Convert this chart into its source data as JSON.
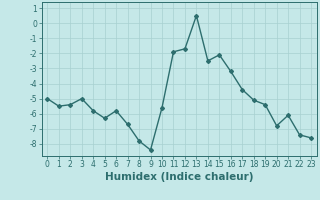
{
  "x": [
    0,
    1,
    2,
    3,
    4,
    5,
    6,
    7,
    8,
    9,
    10,
    11,
    12,
    13,
    14,
    15,
    16,
    17,
    18,
    19,
    20,
    21,
    22,
    23
  ],
  "y": [
    -5.0,
    -5.5,
    -5.4,
    -5.0,
    -5.8,
    -6.3,
    -5.8,
    -6.7,
    -7.8,
    -8.4,
    -5.6,
    -1.9,
    -1.7,
    0.5,
    -2.5,
    -2.1,
    -3.2,
    -4.4,
    -5.1,
    -5.4,
    -6.8,
    -6.1,
    -7.4,
    -7.6
  ],
  "line_color": "#2d6e6e",
  "marker": "D",
  "marker_size": 2,
  "bg_color": "#c5e8e8",
  "grid_color": "#a8d0d0",
  "xlabel": "Humidex (Indice chaleur)",
  "ylim": [
    -8.8,
    1.4
  ],
  "xlim": [
    -0.5,
    23.5
  ],
  "yticks": [
    1,
    0,
    -1,
    -2,
    -3,
    -4,
    -5,
    -6,
    -7,
    -8
  ],
  "xticks": [
    0,
    1,
    2,
    3,
    4,
    5,
    6,
    7,
    8,
    9,
    10,
    11,
    12,
    13,
    14,
    15,
    16,
    17,
    18,
    19,
    20,
    21,
    22,
    23
  ],
  "tick_label_fontsize": 5.5,
  "xlabel_fontsize": 7.5,
  "line_width": 1.0
}
